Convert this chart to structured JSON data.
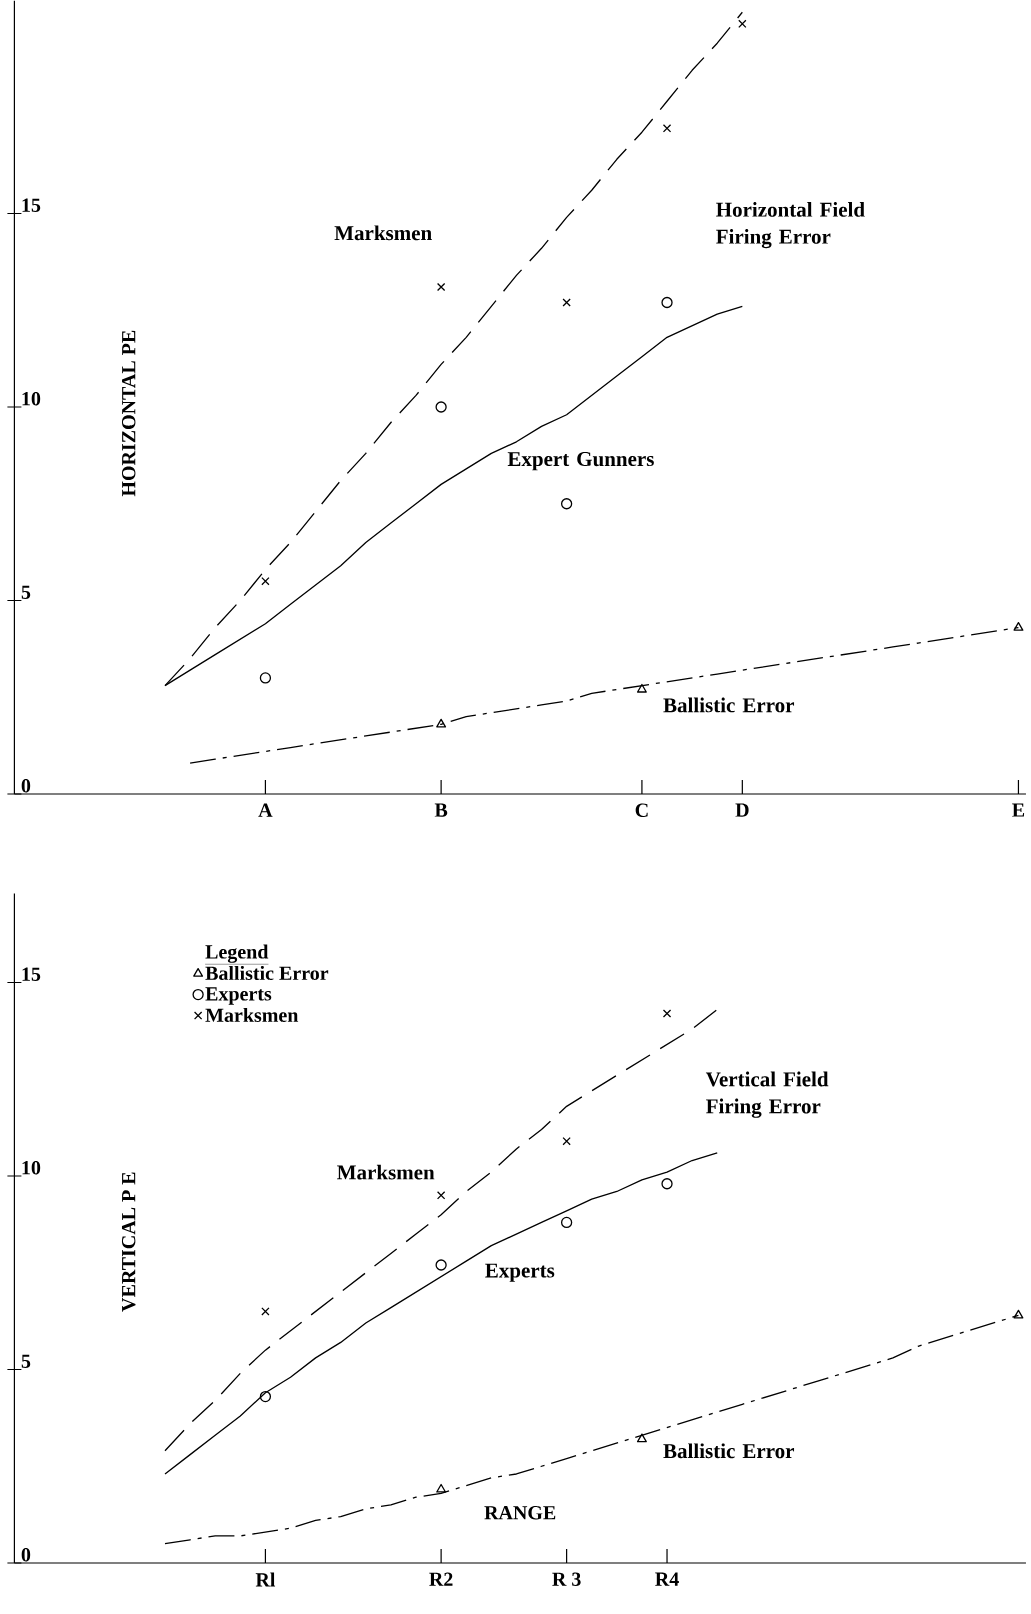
{
  "chart_data": [
    {
      "type": "scatter",
      "ylabel": "HORIZONTAL PE",
      "ylim": [
        0,
        20.5
      ],
      "yticks": [
        0,
        5,
        10,
        15
      ],
      "legend": false,
      "grid": false,
      "categories": [
        null,
        null,
        null,
        null,
        null,
        null,
        null,
        null,
        null,
        null,
        "A",
        null,
        null,
        null,
        null,
        null,
        null,
        "B",
        null,
        null,
        null,
        null,
        null,
        null,
        null,
        "C",
        null,
        null,
        null,
        "D",
        null,
        null,
        null,
        null,
        null,
        null,
        null,
        null,
        null,
        null,
        "E"
      ],
      "series": [
        {
          "marker": "cross",
          "color": "#000000",
          "values": [
            null,
            null,
            null,
            null,
            null,
            null,
            null,
            null,
            null,
            null,
            5.5,
            null,
            null,
            null,
            null,
            null,
            null,
            13.1,
            null,
            null,
            null,
            null,
            12.7,
            null,
            null,
            null,
            17.2,
            null,
            null,
            19.9,
            null,
            null,
            null,
            null,
            null,
            null,
            null,
            null,
            null,
            null,
            null
          ]
        },
        {
          "marker": "circle",
          "color": "#000000",
          "values": [
            null,
            null,
            null,
            null,
            null,
            null,
            null,
            null,
            null,
            null,
            3.0,
            null,
            null,
            null,
            null,
            null,
            null,
            10.0,
            null,
            null,
            null,
            null,
            7.5,
            null,
            null,
            null,
            12.7,
            null,
            null,
            null,
            null,
            null,
            null,
            null,
            null,
            null,
            null,
            null,
            null,
            null,
            null
          ]
        },
        {
          "marker": "triangle",
          "color": "#000000",
          "values": [
            null,
            null,
            null,
            null,
            null,
            null,
            null,
            null,
            null,
            null,
            null,
            null,
            null,
            null,
            null,
            null,
            null,
            1.8,
            null,
            null,
            null,
            null,
            null,
            null,
            null,
            2.7,
            null,
            null,
            null,
            null,
            null,
            null,
            null,
            null,
            null,
            null,
            null,
            null,
            null,
            null,
            4.3
          ]
        },
        {
          "type": "line",
          "line_style": "dashed",
          "color": "#000000",
          "values": [
            null,
            null,
            null,
            null,
            null,
            null,
            2.8,
            3.5,
            4.3,
            5.0,
            5.8,
            6.5,
            7.3,
            8.1,
            8.8,
            9.6,
            10.3,
            11.1,
            11.8,
            12.6,
            13.4,
            14.1,
            14.9,
            15.6,
            16.4,
            17.1,
            17.9,
            18.7,
            19.4,
            20.2,
            null,
            null,
            null,
            null,
            null,
            null,
            null,
            null,
            null,
            null,
            null
          ]
        },
        {
          "type": "line",
          "line_style": "solid",
          "color": "#000000",
          "values": [
            null,
            null,
            null,
            null,
            null,
            null,
            2.8,
            3.2,
            3.6,
            4.0,
            4.4,
            4.9,
            5.4,
            5.9,
            6.5,
            7.0,
            7.5,
            8.0,
            8.4,
            8.8,
            9.1,
            9.5,
            9.8,
            10.3,
            10.8,
            11.3,
            11.8,
            12.1,
            12.4,
            12.6,
            null,
            null,
            null,
            null,
            null,
            null,
            null,
            null,
            null,
            null,
            null
          ]
        },
        {
          "type": "line",
          "line_style": "dashdot",
          "color": "#000000",
          "values": [
            null,
            null,
            null,
            null,
            null,
            null,
            null,
            0.8,
            0.9,
            1.0,
            1.1,
            1.2,
            1.3,
            1.4,
            1.5,
            1.6,
            1.7,
            1.8,
            2.0,
            2.1,
            2.2,
            2.3,
            2.4,
            2.6,
            2.7,
            2.8,
            2.9,
            3.0,
            3.1,
            3.2,
            3.3,
            3.4,
            3.5,
            3.6,
            3.7,
            3.8,
            3.9,
            4.0,
            4.1,
            4.2,
            4.3
          ]
        }
      ],
      "annotations": [
        "Marksmen",
        "Horizontal Field Firing Error",
        "Expert Gunners",
        "Ballistic Error"
      ]
    },
    {
      "type": "scatter",
      "ylabel": "VERTICAL P E",
      "xlabel": "RANGE",
      "ylim": [
        0,
        17.3
      ],
      "yticks": [
        0,
        5,
        10,
        15
      ],
      "legend": "top left",
      "legend_title": "Legend",
      "grid": false,
      "categories": [
        null,
        null,
        null,
        null,
        null,
        null,
        null,
        null,
        null,
        null,
        "Rl",
        null,
        null,
        null,
        null,
        null,
        null,
        "R2",
        null,
        null,
        null,
        null,
        "R 3",
        null,
        null,
        null,
        "R4",
        null,
        null,
        null,
        null,
        null,
        null,
        null,
        null,
        null,
        null,
        null,
        null,
        null,
        null
      ],
      "series": [
        {
          "name": "Ballistic Error",
          "marker": "triangle",
          "color": "#000000",
          "values": [
            null,
            null,
            null,
            null,
            null,
            null,
            null,
            null,
            null,
            null,
            null,
            null,
            null,
            null,
            null,
            null,
            null,
            1.9,
            null,
            null,
            null,
            null,
            null,
            null,
            null,
            3.2,
            null,
            null,
            null,
            null,
            null,
            null,
            null,
            null,
            null,
            null,
            null,
            null,
            null,
            null,
            6.4
          ]
        },
        {
          "name": "Experts",
          "marker": "circle",
          "color": "#000000",
          "values": [
            null,
            null,
            null,
            null,
            null,
            null,
            null,
            null,
            null,
            null,
            4.3,
            null,
            null,
            null,
            null,
            null,
            null,
            7.7,
            null,
            null,
            null,
            null,
            8.8,
            null,
            null,
            null,
            9.8,
            null,
            null,
            null,
            null,
            null,
            null,
            null,
            null,
            null,
            null,
            null,
            null,
            null,
            null
          ]
        },
        {
          "name": "Marksmen",
          "marker": "cross",
          "color": "#000000",
          "values": [
            null,
            null,
            null,
            null,
            null,
            null,
            null,
            null,
            null,
            null,
            6.5,
            null,
            null,
            null,
            null,
            null,
            null,
            9.5,
            null,
            null,
            null,
            null,
            10.9,
            null,
            null,
            null,
            14.2,
            null,
            null,
            null,
            null,
            null,
            null,
            null,
            null,
            null,
            null,
            null,
            null,
            null,
            null
          ]
        },
        {
          "type": "line",
          "line_style": "dashed",
          "color": "#000000",
          "values": [
            null,
            null,
            null,
            null,
            null,
            null,
            2.9,
            3.6,
            4.2,
            4.9,
            5.5,
            6.0,
            6.5,
            7.0,
            7.5,
            8.0,
            8.5,
            9.0,
            9.6,
            10.1,
            10.7,
            11.2,
            11.8,
            12.2,
            12.6,
            13.0,
            13.4,
            13.8,
            14.3,
            null,
            null,
            null,
            null,
            null,
            null,
            null,
            null,
            null,
            null,
            null,
            null
          ]
        },
        {
          "type": "line",
          "line_style": "solid",
          "color": "#000000",
          "values": [
            null,
            null,
            null,
            null,
            null,
            null,
            2.3,
            2.8,
            3.3,
            3.8,
            4.4,
            4.8,
            5.3,
            5.7,
            6.2,
            6.6,
            7.0,
            7.4,
            7.8,
            8.2,
            8.5,
            8.8,
            9.1,
            9.4,
            9.6,
            9.9,
            10.1,
            10.4,
            10.6,
            null,
            null,
            null,
            null,
            null,
            null,
            null,
            null,
            null,
            null,
            null,
            null
          ]
        },
        {
          "type": "line",
          "line_style": "dashdot",
          "color": "#000000",
          "values": [
            null,
            null,
            null,
            null,
            null,
            null,
            0.5,
            0.6,
            0.7,
            0.7,
            0.8,
            0.9,
            1.1,
            1.2,
            1.4,
            1.5,
            1.7,
            1.8,
            2.0,
            2.2,
            2.3,
            2.5,
            2.7,
            2.9,
            3.1,
            3.3,
            3.5,
            3.7,
            3.9,
            4.1,
            4.3,
            4.5,
            4.7,
            4.9,
            5.1,
            5.3,
            5.6,
            5.8,
            6.0,
            6.2,
            6.4
          ]
        }
      ],
      "annotations": [
        "Marksmen",
        "Vertical Field Firing Error",
        "Experts",
        "Ballistic Error"
      ]
    }
  ]
}
